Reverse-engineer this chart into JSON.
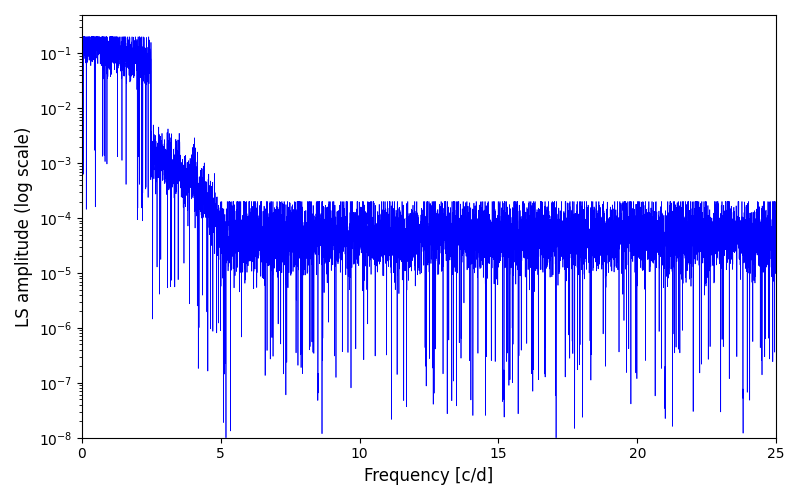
{
  "xlabel": "Frequency [c/d]",
  "ylabel": "LS amplitude (log scale)",
  "xlim": [
    0,
    25
  ],
  "ylim": [
    1e-08,
    0.5
  ],
  "line_color": "#0000ff",
  "line_width": 0.5,
  "background_color": "#ffffff",
  "figsize": [
    8.0,
    5.0
  ],
  "dpi": 100,
  "n_points": 8000,
  "freq_max": 25.0,
  "seed": 12345
}
